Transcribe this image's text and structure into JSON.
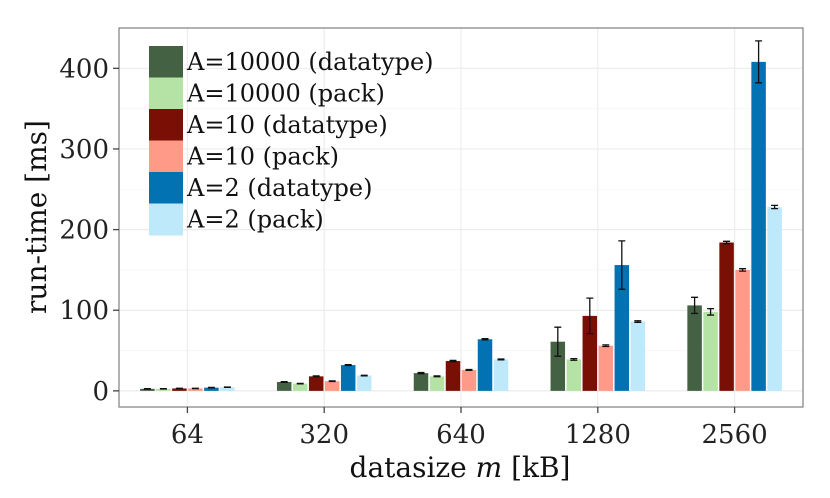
{
  "chart_data": {
    "type": "bar",
    "title": "",
    "xlabel_prefix": "datasize ",
    "xlabel_var": "m",
    "xlabel_suffix": " [kB]",
    "ylabel": "run-time [ms]",
    "categories": [
      "64",
      "320",
      "640",
      "1280",
      "2560"
    ],
    "ylim": [
      -20,
      450
    ],
    "yticks": [
      0,
      100,
      200,
      300,
      400
    ],
    "grid": true,
    "legend_position": "top-left",
    "series": [
      {
        "name": "A=10000 (datatype)",
        "color": "#446144",
        "values": [
          2.5,
          11,
          22,
          61,
          106
        ],
        "errors": [
          0.3,
          0.5,
          0.8,
          18,
          10
        ]
      },
      {
        "name": "A=10000 (pack)",
        "color": "#b5e3a5",
        "values": [
          2.5,
          9,
          18,
          39,
          98
        ],
        "errors": [
          0.2,
          0.3,
          0.5,
          1,
          4
        ]
      },
      {
        "name": "A=10 (datatype)",
        "color": "#7a1005",
        "values": [
          3,
          18,
          37,
          93,
          184
        ],
        "errors": [
          0.2,
          0.5,
          0.8,
          22,
          1.5
        ]
      },
      {
        "name": "A=10 (pack)",
        "color": "#ff9a88",
        "values": [
          3,
          12,
          26,
          56,
          150
        ],
        "errors": [
          0.2,
          0.3,
          0.5,
          1,
          1.5
        ]
      },
      {
        "name": "A=2 (datatype)",
        "color": "#0272b2",
        "values": [
          4,
          32,
          64,
          156,
          408
        ],
        "errors": [
          0.3,
          0.5,
          0.8,
          30,
          26
        ]
      },
      {
        "name": "A=2 (pack)",
        "color": "#bde9fb",
        "values": [
          4.5,
          19,
          39,
          86,
          228
        ],
        "errors": [
          0.2,
          0.4,
          0.5,
          1,
          2
        ]
      }
    ]
  }
}
